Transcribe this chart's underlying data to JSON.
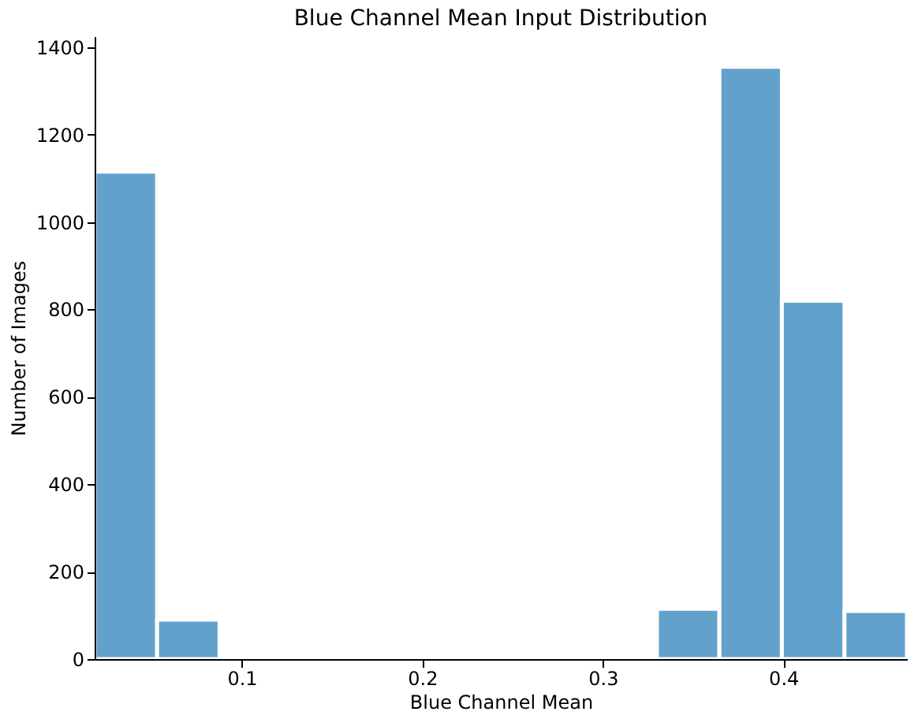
{
  "chart_data": {
    "type": "histogram",
    "title": "Blue Channel Mean Input Distribution",
    "xlabel": "Blue Channel Mean",
    "ylabel": "Number of Images",
    "bins": [
      0.0185,
      0.0531,
      0.0877,
      0.1223,
      0.1569,
      0.1915,
      0.2262,
      0.2608,
      0.2954,
      0.33,
      0.3646,
      0.3992,
      0.4339,
      0.4685
    ],
    "values": [
      1115,
      90,
      0,
      0,
      0,
      0,
      0,
      0,
      0,
      115,
      1355,
      820,
      110
    ],
    "color": "#62a1cc",
    "xlim": [
      0.0185,
      0.4685
    ],
    "xticks": [
      0.1,
      0.2,
      0.3,
      0.4
    ],
    "ylim": [
      0,
      1425
    ],
    "yticks": [
      0,
      200,
      400,
      600,
      800,
      1000,
      1200,
      1400
    ],
    "grid": false,
    "legend": false
  }
}
